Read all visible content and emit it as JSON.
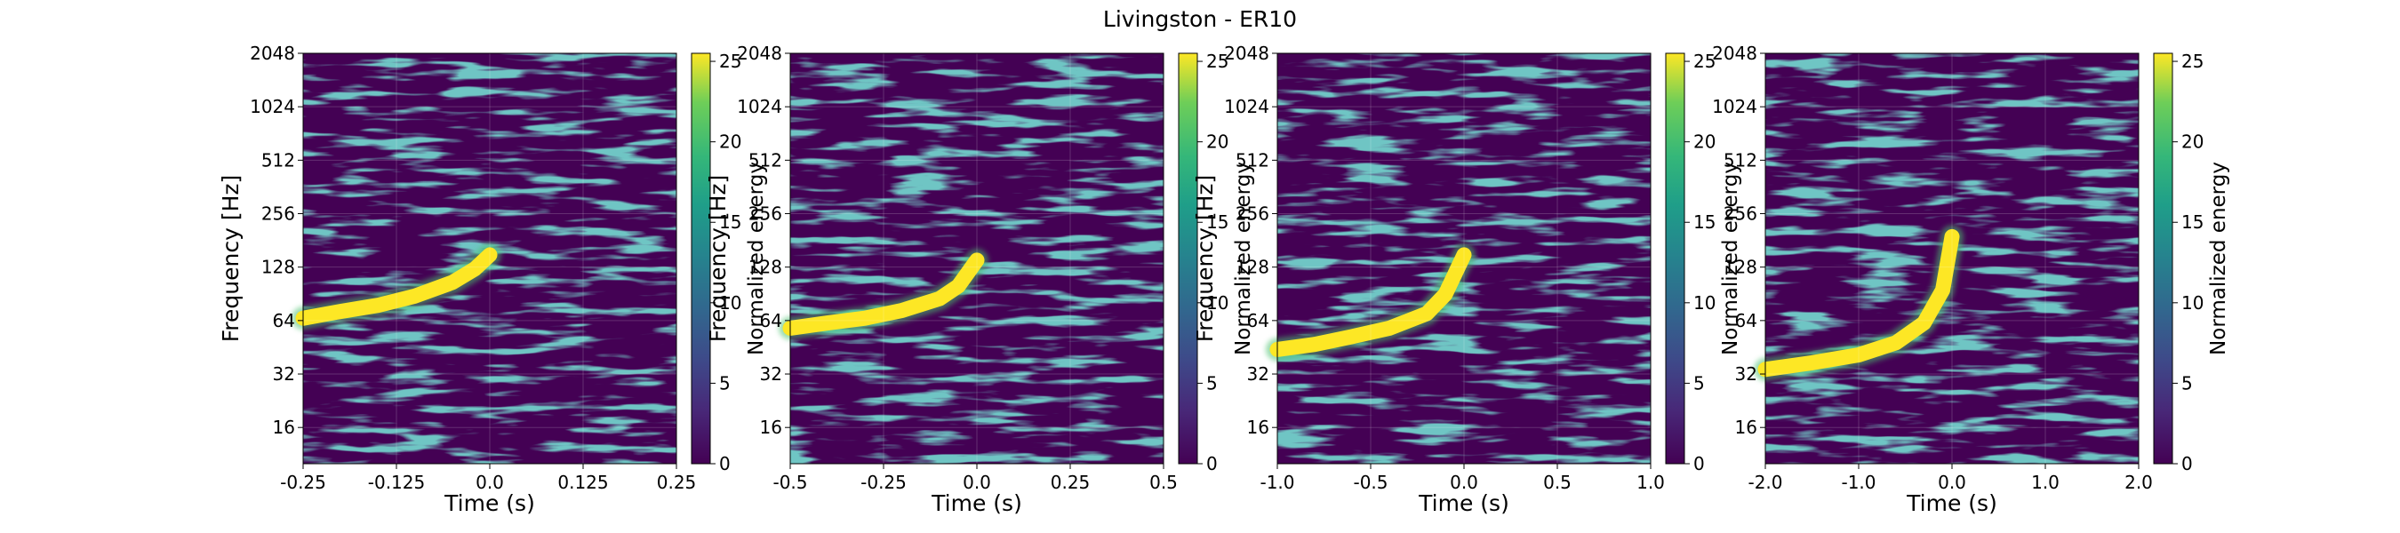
{
  "title": "Livingston - ER10",
  "colors": {
    "viridis_low": "#440154",
    "viridis_mid": "#21918c",
    "viridis_high": "#fde725",
    "background": "#440154"
  },
  "chart_data": [
    {
      "type": "heatmap",
      "xlabel": "Time (s)",
      "ylabel": "Frequency [Hz]",
      "colorbar_label": "Normalized energy",
      "xlim": [
        -0.25,
        0.25
      ],
      "ylim": [
        10,
        2048
      ],
      "yscale": "log2",
      "xticks": [
        -0.25,
        -0.125,
        0.0,
        0.125,
        0.25
      ],
      "xtick_labels": [
        "-0.25",
        "-0.125",
        "0.0",
        "0.125",
        "0.25"
      ],
      "yticks": [
        16,
        32,
        64,
        128,
        256,
        512,
        1024,
        2048
      ],
      "ytick_labels": [
        "16",
        "32",
        "64",
        "128",
        "256",
        "512",
        "1024",
        "2048"
      ],
      "clim": [
        0,
        25.5
      ],
      "cticks": [
        0,
        5,
        10,
        15,
        20,
        25
      ],
      "ctick_labels": [
        "0",
        "5",
        "10",
        "15",
        "20",
        "25"
      ],
      "grid": true,
      "chirp": {
        "t": [
          -0.25,
          -0.2,
          -0.15,
          -0.1,
          -0.05,
          -0.02,
          0.0
        ],
        "f": [
          66,
          72,
          78,
          88,
          105,
          125,
          150
        ]
      }
    },
    {
      "type": "heatmap",
      "xlabel": "Time (s)",
      "ylabel": "Frequency [Hz]",
      "colorbar_label": "Normalized energy",
      "xlim": [
        -0.5,
        0.5
      ],
      "ylim": [
        10,
        2048
      ],
      "yscale": "log2",
      "xticks": [
        -0.5,
        -0.25,
        0.0,
        0.25,
        0.5
      ],
      "xtick_labels": [
        "-0.5",
        "-0.25",
        "0.0",
        "0.25",
        "0.5"
      ],
      "yticks": [
        16,
        32,
        64,
        128,
        256,
        512,
        1024,
        2048
      ],
      "ytick_labels": [
        "16",
        "32",
        "64",
        "128",
        "256",
        "512",
        "1024",
        "2048"
      ],
      "clim": [
        0,
        25.5
      ],
      "cticks": [
        0,
        5,
        10,
        15,
        20,
        25
      ],
      "ctick_labels": [
        "0",
        "5",
        "10",
        "15",
        "20",
        "25"
      ],
      "grid": true,
      "chirp": {
        "t": [
          -0.5,
          -0.4,
          -0.3,
          -0.2,
          -0.1,
          -0.05,
          0.0
        ],
        "f": [
          58,
          62,
          66,
          73,
          85,
          100,
          140
        ]
      }
    },
    {
      "type": "heatmap",
      "xlabel": "Time (s)",
      "ylabel": "Frequency [Hz]",
      "colorbar_label": "Normalized energy",
      "xlim": [
        -1.0,
        1.0
      ],
      "ylim": [
        10,
        2048
      ],
      "yscale": "log2",
      "xticks": [
        -1.0,
        -0.5,
        0.0,
        0.5,
        1.0
      ],
      "xtick_labels": [
        "-1.0",
        "-0.5",
        "0.0",
        "0.5",
        "1.0"
      ],
      "yticks": [
        16,
        32,
        64,
        128,
        256,
        512,
        1024,
        2048
      ],
      "ytick_labels": [
        "16",
        "32",
        "64",
        "128",
        "256",
        "512",
        "1024",
        "2048"
      ],
      "clim": [
        0,
        25.5
      ],
      "cticks": [
        0,
        5,
        10,
        15,
        20,
        25
      ],
      "ctick_labels": [
        "0",
        "5",
        "10",
        "15",
        "20",
        "25"
      ],
      "grid": true,
      "chirp": {
        "t": [
          -1.0,
          -0.8,
          -0.6,
          -0.4,
          -0.2,
          -0.1,
          0.0
        ],
        "f": [
          44,
          47,
          52,
          58,
          70,
          90,
          150
        ]
      }
    },
    {
      "type": "heatmap",
      "xlabel": "Time (s)",
      "ylabel": "",
      "colorbar_label": "Normalized energy",
      "xlim": [
        -2.0,
        2.0
      ],
      "ylim": [
        10,
        2048
      ],
      "yscale": "log2",
      "xticks": [
        -2.0,
        -1.0,
        0.0,
        1.0,
        2.0
      ],
      "xtick_labels": [
        "-2.0",
        "-1.0",
        "0.0",
        "1.0",
        "2.0"
      ],
      "yticks": [
        16,
        32,
        64,
        128,
        256,
        512,
        1024,
        2048
      ],
      "ytick_labels": [
        "16",
        "32",
        "64",
        "128",
        "256",
        "512",
        "1024",
        "2048"
      ],
      "clim": [
        0,
        25.5
      ],
      "cticks": [
        0,
        5,
        10,
        15,
        20,
        25
      ],
      "ctick_labels": [
        "0",
        "5",
        "10",
        "15",
        "20",
        "25"
      ],
      "grid": true,
      "chirp": {
        "t": [
          -2.0,
          -1.5,
          -1.0,
          -0.6,
          -0.3,
          -0.1,
          0.0
        ],
        "f": [
          34,
          37,
          41,
          48,
          62,
          95,
          190
        ]
      }
    }
  ]
}
